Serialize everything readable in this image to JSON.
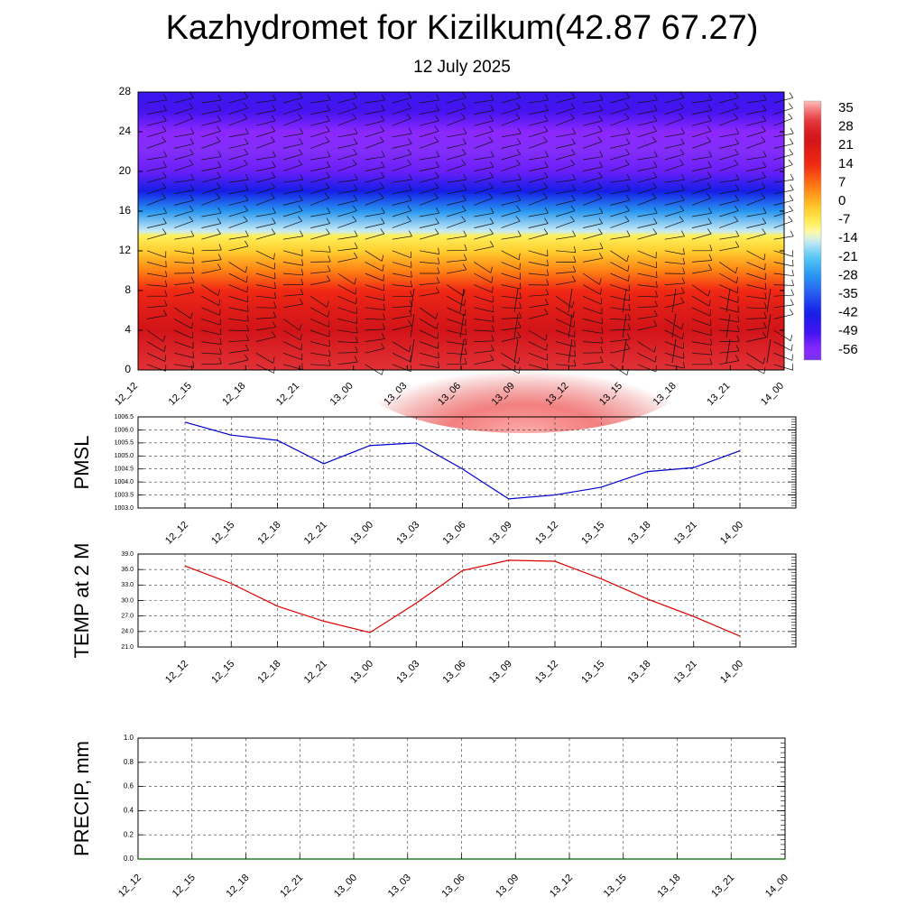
{
  "header": {
    "title": "Kazhydromet for Kizilkum(42.87 67.27)",
    "subtitle": "12 July 2025"
  },
  "time_labels": [
    "12_12",
    "12_15",
    "12_18",
    "12_21",
    "13_00",
    "13_03",
    "13_06",
    "13_09",
    "13_12",
    "13_15",
    "13_18",
    "13_21",
    "14_00"
  ],
  "chart_data": [
    {
      "type": "heatmap",
      "title": "Kazhydromet for Kizilkum(42.87 67.27)",
      "subtitle": "12 July 2025",
      "x": [
        "12_12",
        "12_15",
        "12_18",
        "12_21",
        "13_00",
        "13_03",
        "13_06",
        "13_09",
        "13_12",
        "13_15",
        "13_18",
        "13_21",
        "14_00"
      ],
      "y_ticks": [
        0,
        4,
        8,
        12,
        16,
        20,
        24,
        28
      ],
      "ylim": [
        0,
        28
      ],
      "colorbar": {
        "labels": [
          "35",
          "28",
          "21",
          "14",
          "7",
          "0",
          "-7",
          "-14",
          "-21",
          "-28",
          "-35",
          "-42",
          "-49",
          "-56"
        ],
        "range": [
          -60,
          38
        ]
      },
      "temperature_profile": [
        {
          "level": 0,
          "value": 30
        },
        {
          "level": 2,
          "value": 27
        },
        {
          "level": 4,
          "value": 24
        },
        {
          "level": 6,
          "value": 20
        },
        {
          "level": 8,
          "value": 14
        },
        {
          "level": 10,
          "value": 5
        },
        {
          "level": 12,
          "value": -3
        },
        {
          "level": 13.5,
          "value": -8
        },
        {
          "level": 14,
          "value": -15
        },
        {
          "level": 16,
          "value": -28
        },
        {
          "level": 18,
          "value": -42
        },
        {
          "level": 20,
          "value": -53
        },
        {
          "level": 22,
          "value": -58
        },
        {
          "level": 24,
          "value": -56
        },
        {
          "level": 26,
          "value": -50
        },
        {
          "level": 28,
          "value": -48
        }
      ],
      "surface_warm_core": {
        "center_time": "13_09",
        "max_value": 38
      },
      "overlay": "wind barbs",
      "grid": false
    },
    {
      "type": "line",
      "ylabel": "PMSL",
      "x": [
        "12_12",
        "12_15",
        "12_18",
        "12_21",
        "13_00",
        "13_03",
        "13_06",
        "13_09",
        "13_12",
        "13_15",
        "13_18",
        "13_21",
        "14_00"
      ],
      "ylim": [
        1003.0,
        1006.5
      ],
      "y_ticks": [
        "1003.0",
        "1003.5",
        "1004.0",
        "1004.5",
        "1005.0",
        "1005.5",
        "1006.0",
        "1006.5"
      ],
      "series": [
        {
          "values": [
            1006.3,
            1005.8,
            1005.6,
            1004.7,
            1005.4,
            1005.5,
            1004.5,
            1003.35,
            1003.5,
            1003.8,
            1004.4,
            1004.55,
            1005.2
          ],
          "color": "#0000cc"
        }
      ],
      "grid": true
    },
    {
      "type": "line",
      "ylabel": "TEMP at 2 M",
      "x": [
        "12_12",
        "12_15",
        "12_18",
        "12_21",
        "13_00",
        "13_03",
        "13_06",
        "13_09",
        "13_12",
        "13_15",
        "13_18",
        "13_21",
        "14_00"
      ],
      "ylim": [
        21.0,
        39.0
      ],
      "y_ticks": [
        "21.0",
        "24.0",
        "27.0",
        "30.0",
        "33.0",
        "36.0",
        "39.0"
      ],
      "series": [
        {
          "values": [
            36.7,
            33.3,
            28.9,
            26.0,
            23.8,
            29.5,
            35.8,
            37.8,
            37.6,
            34.2,
            30.3,
            26.9,
            23.1
          ],
          "color": "#dd0000"
        }
      ],
      "grid": true
    },
    {
      "type": "line",
      "ylabel": "PRECIP, mm",
      "x": [
        "12_12",
        "12_15",
        "12_18",
        "12_21",
        "13_00",
        "13_03",
        "13_06",
        "13_09",
        "13_12",
        "13_15",
        "13_18",
        "13_21",
        "14_00"
      ],
      "ylim": [
        0.0,
        1.0
      ],
      "y_ticks": [
        "0.0",
        "0.2",
        "0.4",
        "0.6",
        "0.8",
        "1.0"
      ],
      "series": [
        {
          "values": [
            0,
            0,
            0,
            0,
            0,
            0,
            0,
            0,
            0,
            0,
            0,
            0,
            0
          ],
          "color": "#006600"
        }
      ],
      "grid": true
    }
  ]
}
